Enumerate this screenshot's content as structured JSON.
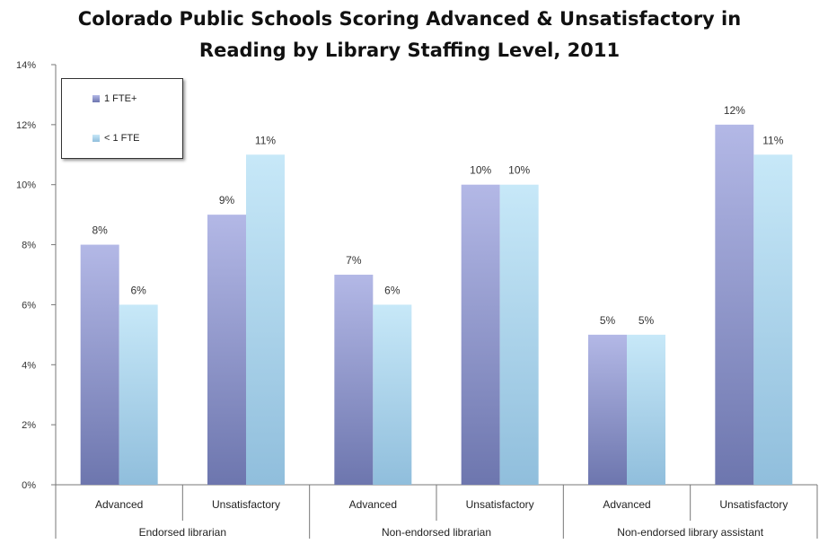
{
  "chart_data": {
    "type": "bar",
    "title_line1": "Colorado Public Schools Scoring Advanced & Unsatisfactory in",
    "title_line2": "Reading by Library Staffing Level, 2011",
    "categories": [
      "Advanced",
      "Unsatisfactory",
      "Advanced",
      "Unsatisfactory",
      "Advanced",
      "Unsatisfactory"
    ],
    "groups": [
      "Endorsed librarian",
      "Non-endorsed librarian",
      "Non-endorsed library assistant"
    ],
    "series": [
      {
        "name": "1 FTE+",
        "values": [
          8,
          9,
          7,
          10,
          5,
          12
        ],
        "labels": [
          "8%",
          "9%",
          "7%",
          "10%",
          "5%",
          "12%"
        ],
        "color_top": "#b3b8e6",
        "color_bottom": "#6d76ae"
      },
      {
        "name": "< 1 FTE",
        "values": [
          6,
          11,
          6,
          10,
          5,
          11
        ],
        "labels": [
          "6%",
          "11%",
          "6%",
          "10%",
          "5%",
          "11%"
        ],
        "color_top": "#c7e8f8",
        "color_bottom": "#90bedc"
      }
    ],
    "y_ticks": [
      "0%",
      "2%",
      "4%",
      "6%",
      "8%",
      "10%",
      "12%",
      "14%"
    ],
    "ylim": [
      0,
      14
    ],
    "legend_position": "top-left",
    "grid": false
  }
}
